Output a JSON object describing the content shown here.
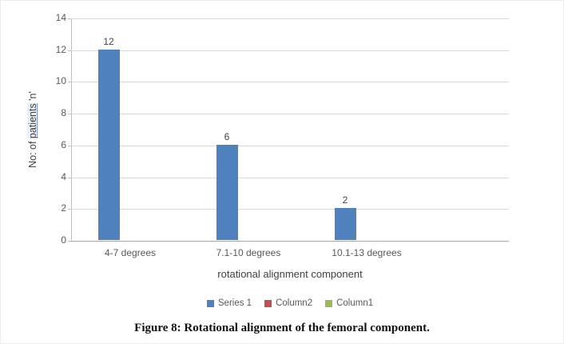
{
  "caption": "Figure 8: Rotational alignment of the femoral component.",
  "chart_data": {
    "type": "bar",
    "title": "",
    "categories": [
      "4-7 degrees",
      "7.1-10 degrees",
      "10.1-13 degrees"
    ],
    "series": [
      {
        "name": "Series 1",
        "color": "#4f81bd",
        "values": [
          12,
          6,
          2
        ]
      },
      {
        "name": "Column2",
        "color": "#c0504d",
        "values": []
      },
      {
        "name": "Column1",
        "color": "#9bbb59",
        "values": []
      }
    ],
    "data_labels": [
      12,
      6,
      2
    ],
    "xlabel": "rotational alignment component",
    "ylabel": "No: of patients 'n'",
    "ylabel_parts": {
      "prefix": "No: of ",
      "underlined": "patients",
      "suffix": " 'n'"
    },
    "ylim": [
      0,
      14
    ],
    "yticks": [
      0,
      2,
      4,
      6,
      8,
      10,
      12,
      14
    ],
    "grid": true,
    "legend_position": "bottom",
    "colors": {
      "bar": "#4f81bd",
      "gridline": "#d9d9d9",
      "axis": "#a6a6a6",
      "tick_text": "#595959",
      "label_text": "#404040"
    }
  }
}
